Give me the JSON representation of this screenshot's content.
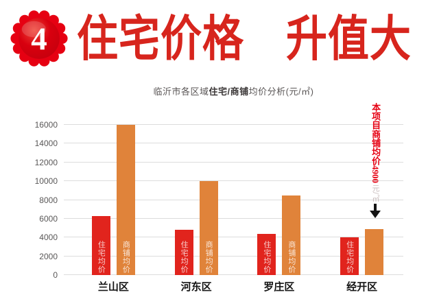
{
  "header": {
    "badge_number": "4",
    "title": "住宅价格　升值大"
  },
  "subtitle": {
    "prefix": "临沂市各区域",
    "bold": "住宅/商铺",
    "suffix": "均价分析(元/㎡)"
  },
  "chart_data": {
    "type": "bar",
    "title": "临沂市各区域住宅/商铺均价分析(元/㎡)",
    "categories": [
      "兰山区",
      "河东区",
      "罗庄区",
      "经开区"
    ],
    "series": [
      {
        "name": "住宅均价",
        "color": "#e1241d",
        "values": [
          6300,
          4800,
          4400,
          4000
        ],
        "label_in_bar": [
          true,
          true,
          true,
          true
        ]
      },
      {
        "name": "商铺均价",
        "color": "#e0833a",
        "values": [
          16000,
          10000,
          8500,
          4900
        ],
        "label_in_bar": [
          true,
          true,
          true,
          false
        ]
      }
    ],
    "ylim": [
      0,
      16000
    ],
    "ytick_step": 2000,
    "grid": true,
    "legend": "none",
    "bar_label_color": "rgba(255,255,255,0.8)"
  },
  "annotation": {
    "line_red": "本项目商铺均价4900",
    "line_gray": "元/㎡"
  },
  "colors": {
    "title_red": "#d7251d",
    "badge_red": "#e60012",
    "residential_bar": "#e1241d",
    "shop_bar": "#e0833a",
    "gridline": "#dcdcdc",
    "tick_label": "#595757",
    "annotation_red": "#e60012",
    "annotation_gray": "#c9bdbd",
    "arrow_black": "#141414"
  }
}
